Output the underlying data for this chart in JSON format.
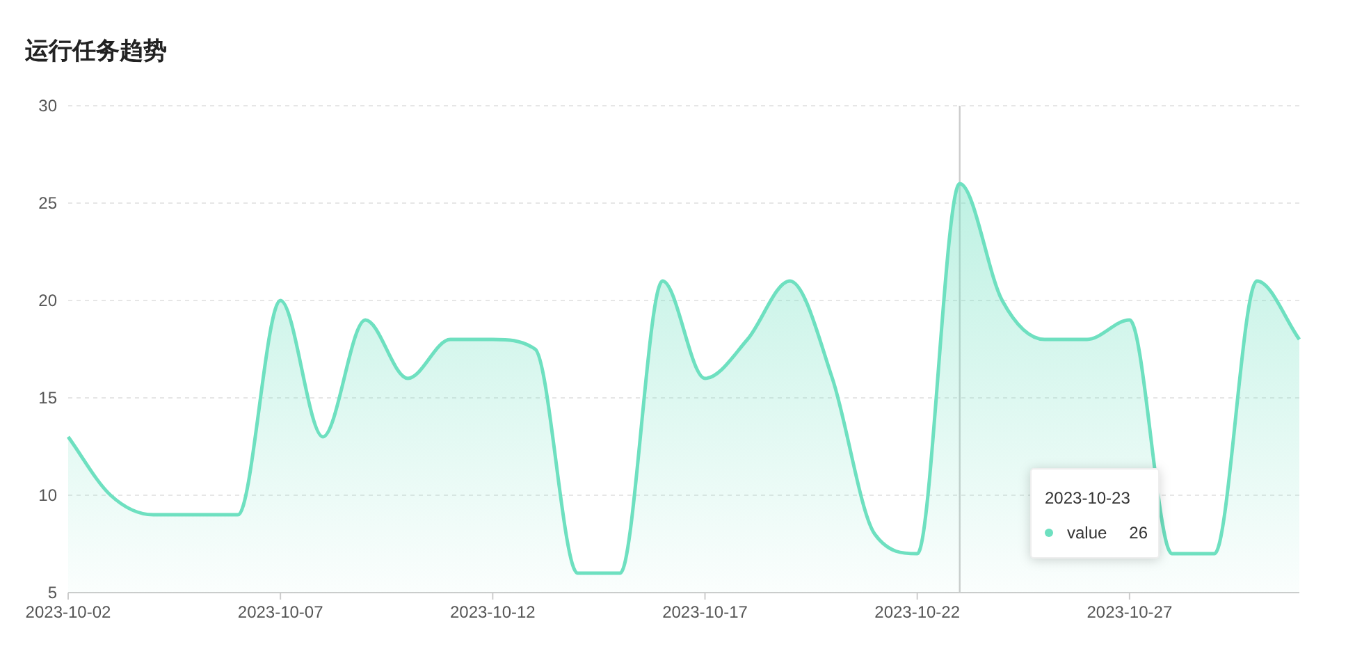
{
  "chart_data": {
    "type": "area",
    "title": "运行任务趋势",
    "x": [
      "2023-10-02",
      "2023-10-03",
      "2023-10-04",
      "2023-10-05",
      "2023-10-06",
      "2023-10-07",
      "2023-10-08",
      "2023-10-09",
      "2023-10-10",
      "2023-10-11",
      "2023-10-12",
      "2023-10-13",
      "2023-10-14",
      "2023-10-15",
      "2023-10-16",
      "2023-10-17",
      "2023-10-18",
      "2023-10-19",
      "2023-10-20",
      "2023-10-21",
      "2023-10-22",
      "2023-10-23",
      "2023-10-24",
      "2023-10-25",
      "2023-10-26",
      "2023-10-27",
      "2023-10-28",
      "2023-10-29",
      "2023-10-30",
      "2023-10-31"
    ],
    "series": [
      {
        "name": "value",
        "color": "#6ee0c0",
        "values": [
          13,
          10,
          9,
          9,
          9,
          20,
          13,
          19,
          16,
          18,
          18,
          17.5,
          6,
          6,
          21,
          16,
          18,
          21,
          16,
          8,
          7,
          26,
          20,
          18,
          18,
          19,
          7,
          7,
          21,
          18
        ]
      }
    ],
    "xlim": [
      "2023-10-02",
      "2023-10-31"
    ],
    "xticks": [
      "2023-10-02",
      "2023-10-07",
      "2023-10-12",
      "2023-10-17",
      "2023-10-22",
      "2023-10-27"
    ],
    "ylim": [
      5,
      30
    ],
    "yticks": [
      5,
      10,
      15,
      20,
      25,
      30
    ],
    "grid": "y",
    "legend": "bottom right",
    "marker": "none",
    "line_style": "solid",
    "ref_lines": [
      {
        "axis": "x",
        "value": "2023-10-23",
        "color": "#cccccc"
      }
    ],
    "annotations": [
      "2023-10-23",
      "26"
    ]
  }
}
